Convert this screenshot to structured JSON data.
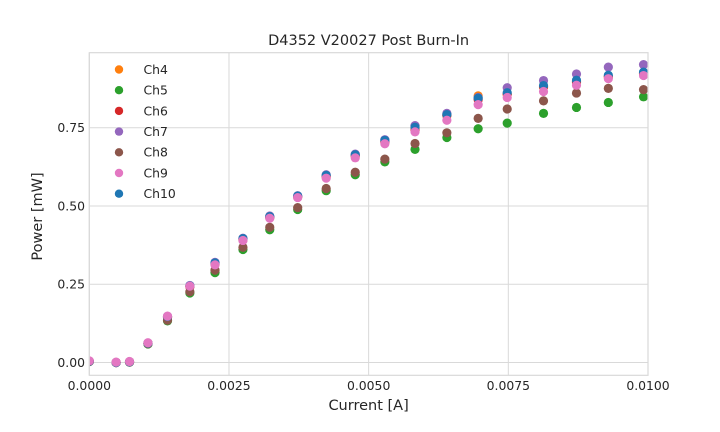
{
  "chart_data": {
    "type": "scatter",
    "title": "D4352 V20027 Post Burn-In",
    "xlabel": "Current [A]",
    "ylabel": "Power [mW]",
    "xlim": [
      0.0,
      0.01
    ],
    "ylim": [
      -0.041,
      0.99
    ],
    "grid": true,
    "legend_position": "upper left",
    "xticks": [
      {
        "value": 0.0,
        "label": "0.0000"
      },
      {
        "value": 0.0025,
        "label": "0.0025"
      },
      {
        "value": 0.005,
        "label": "0.0050"
      },
      {
        "value": 0.0075,
        "label": "0.0075"
      },
      {
        "value": 0.01,
        "label": "0.0100"
      }
    ],
    "yticks": [
      {
        "value": 0.0,
        "label": "0.00"
      },
      {
        "value": 0.25,
        "label": "0.25"
      },
      {
        "value": 0.5,
        "label": "0.50"
      },
      {
        "value": 0.75,
        "label": "0.75"
      }
    ],
    "x": [
      0.0,
      0.00048,
      0.00072,
      0.00105,
      0.0014,
      0.0018,
      0.00225,
      0.00275,
      0.00323,
      0.00373,
      0.00424,
      0.00476,
      0.00529,
      0.00583,
      0.0064,
      0.00696,
      0.00748,
      0.00813,
      0.00872,
      0.00929,
      0.00992
    ],
    "series": [
      {
        "name": "Ch4",
        "color": "#ff7f0e",
        "z": 1,
        "values": [
          0.004,
          0.0,
          0.002,
          0.061,
          0.145,
          0.243,
          0.315,
          0.393,
          0.464,
          0.53,
          0.595,
          0.661,
          0.706,
          0.747,
          0.789,
          0.852,
          0.856,
          0.88,
          0.896,
          0.913,
          0.923
        ]
      },
      {
        "name": "Ch5",
        "color": "#2ca02c",
        "z": 2,
        "values": [
          0.003,
          0.0,
          0.001,
          0.059,
          0.133,
          0.222,
          0.287,
          0.361,
          0.424,
          0.489,
          0.549,
          0.6,
          0.641,
          0.681,
          0.719,
          0.747,
          0.765,
          0.796,
          0.815,
          0.831,
          0.849
        ]
      },
      {
        "name": "Ch6",
        "color": "#d62728",
        "z": 3,
        "values": [
          0.004,
          0.0,
          0.002,
          0.061,
          0.145,
          0.242,
          0.314,
          0.392,
          0.463,
          0.529,
          0.594,
          0.66,
          0.704,
          0.741,
          0.79,
          0.84,
          0.858,
          0.882,
          0.897,
          0.914,
          0.924
        ]
      },
      {
        "name": "Ch7",
        "color": "#9467bd",
        "z": 4,
        "values": [
          0.004,
          0.0,
          0.002,
          0.062,
          0.147,
          0.246,
          0.32,
          0.397,
          0.468,
          0.533,
          0.6,
          0.666,
          0.712,
          0.757,
          0.796,
          0.847,
          0.878,
          0.901,
          0.922,
          0.944,
          0.952
        ]
      },
      {
        "name": "Ch8",
        "color": "#8c564b",
        "z": 5,
        "values": [
          0.003,
          0.0,
          0.001,
          0.06,
          0.135,
          0.226,
          0.295,
          0.368,
          0.432,
          0.495,
          0.556,
          0.608,
          0.65,
          0.7,
          0.734,
          0.78,
          0.81,
          0.836,
          0.861,
          0.876,
          0.872
        ]
      },
      {
        "name": "Ch9",
        "color": "#e377c2",
        "z": 7,
        "values": [
          0.005,
          0.001,
          0.003,
          0.063,
          0.148,
          0.244,
          0.312,
          0.39,
          0.461,
          0.527,
          0.589,
          0.654,
          0.699,
          0.737,
          0.774,
          0.824,
          0.847,
          0.866,
          0.886,
          0.907,
          0.917
        ]
      },
      {
        "name": "Ch10",
        "color": "#1f77b4",
        "z": 6,
        "values": [
          0.004,
          0.0,
          0.002,
          0.062,
          0.147,
          0.245,
          0.318,
          0.396,
          0.466,
          0.532,
          0.598,
          0.664,
          0.71,
          0.752,
          0.792,
          0.845,
          0.862,
          0.885,
          0.902,
          0.918,
          0.928
        ]
      }
    ],
    "colors": {
      "text": "#262626",
      "grid": "#d9d9d9",
      "spine": "#d9d9d9",
      "background": "#ffffff"
    }
  }
}
